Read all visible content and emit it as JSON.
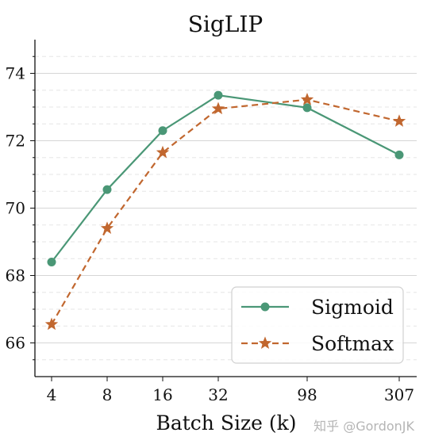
{
  "chart_data": {
    "type": "line",
    "title": "SigLIP",
    "xlabel": "Batch Size (k)",
    "ylabel": "",
    "categories": [
      "4",
      "8",
      "16",
      "32",
      "98",
      "307"
    ],
    "ylim": [
      65,
      75
    ],
    "yticks": [
      66,
      68,
      70,
      72,
      74
    ],
    "grid": true,
    "legend_position": "bottom-right",
    "series": [
      {
        "name": "Sigmoid",
        "values": [
          68.4,
          70.55,
          72.3,
          73.35,
          72.98,
          71.58
        ],
        "color": "#4a9776",
        "marker": "circle",
        "line_style": "solid"
      },
      {
        "name": "Softmax",
        "values": [
          66.55,
          69.4,
          71.65,
          72.95,
          73.22,
          72.58
        ],
        "color": "#c1672f",
        "marker": "star",
        "line_style": "dashed"
      }
    ]
  },
  "watermark": "知乎 @GordonJK"
}
